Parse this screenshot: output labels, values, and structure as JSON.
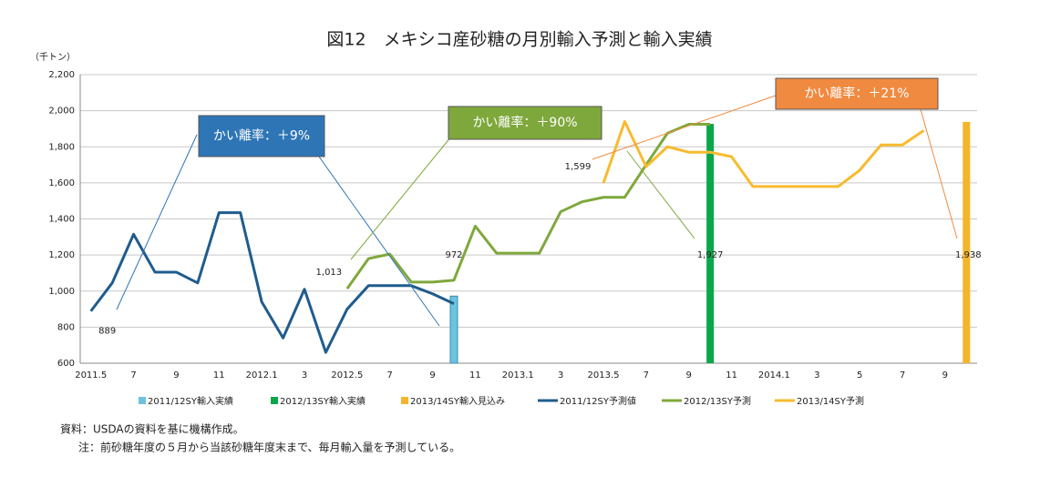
{
  "chart_data": {
    "type": "combo",
    "title": "図12　メキシコ産砂糖の月別輸入予測と輸入実績",
    "y_label": "（千トン）",
    "notes": [
      "資料：USDAの資料を基に機構作成。",
      "注：前砂糖年度の５月から当該砂糖年度末まで、毎月輸入量を予測している。"
    ],
    "categories": [
      "2011.5",
      null,
      "7",
      null,
      "9",
      null,
      "11",
      null,
      "2012.1",
      null,
      "3",
      null,
      "2012.5",
      null,
      "7",
      null,
      "9",
      null,
      "11",
      null,
      "2013.1",
      null,
      "3",
      null,
      "2013.5",
      null,
      "7",
      null,
      "9",
      null,
      "11",
      null,
      "2014.1",
      null,
      "3",
      null,
      "5",
      null,
      "7",
      null,
      "9",
      null
    ],
    "ylim": [
      600,
      2200
    ],
    "yticks": [
      {
        "value": 600,
        "label": "600"
      },
      {
        "value": 800,
        "label": "800"
      },
      {
        "value": 1000,
        "label": "1,000"
      },
      {
        "value": 1200,
        "label": "1,200"
      },
      {
        "value": 1400,
        "label": "1,400"
      },
      {
        "value": 1600,
        "label": "1,600"
      },
      {
        "value": 1800,
        "label": "1,800"
      },
      {
        "value": 2000,
        "label": "2,000"
      },
      {
        "value": 2200,
        "label": "2,200"
      }
    ],
    "series": [
      {
        "name": "2011/12SY輸入実績",
        "type": "bar",
        "color": "#6cc3e0",
        "values": [
          null,
          null,
          null,
          null,
          null,
          null,
          null,
          null,
          null,
          null,
          null,
          null,
          null,
          null,
          null,
          null,
          null,
          972,
          null,
          null,
          null,
          null,
          null,
          null,
          null,
          null,
          null,
          null,
          null,
          null,
          null,
          null,
          null,
          null,
          null,
          null,
          null,
          null,
          null,
          null,
          null,
          null
        ],
        "value_labels": [
          null,
          null,
          null,
          null,
          null,
          null,
          null,
          null,
          null,
          null,
          null,
          null,
          null,
          null,
          null,
          null,
          null,
          "972",
          null,
          null,
          null,
          null,
          null,
          null,
          null,
          null,
          null,
          null,
          null,
          null,
          null,
          null,
          null,
          null,
          null,
          null,
          null,
          null,
          null,
          null,
          null,
          null
        ]
      },
      {
        "name": "2012/13SY輸入実績",
        "type": "bar",
        "color": "#0aa64b",
        "values": [
          null,
          null,
          null,
          null,
          null,
          null,
          null,
          null,
          null,
          null,
          null,
          null,
          null,
          null,
          null,
          null,
          null,
          null,
          null,
          null,
          null,
          null,
          null,
          null,
          null,
          null,
          null,
          null,
          null,
          1927,
          null,
          null,
          null,
          null,
          null,
          null,
          null,
          null,
          null,
          null,
          null,
          null
        ],
        "value_labels": [
          null,
          null,
          null,
          null,
          null,
          null,
          null,
          null,
          null,
          null,
          null,
          null,
          null,
          null,
          null,
          null,
          null,
          null,
          null,
          null,
          null,
          null,
          null,
          null,
          null,
          null,
          null,
          null,
          null,
          "1,927",
          null,
          null,
          null,
          null,
          null,
          null,
          null,
          null,
          null,
          null,
          null,
          null
        ]
      },
      {
        "name": "2013/14SY輸入見込み",
        "type": "bar",
        "color": "#f5b52a",
        "values": [
          null,
          null,
          null,
          null,
          null,
          null,
          null,
          null,
          null,
          null,
          null,
          null,
          null,
          null,
          null,
          null,
          null,
          null,
          null,
          null,
          null,
          null,
          null,
          null,
          null,
          null,
          null,
          null,
          null,
          null,
          null,
          null,
          null,
          null,
          null,
          null,
          null,
          null,
          null,
          null,
          null,
          1938
        ],
        "value_labels": [
          null,
          null,
          null,
          null,
          null,
          null,
          null,
          null,
          null,
          null,
          null,
          null,
          null,
          null,
          null,
          null,
          null,
          null,
          null,
          null,
          null,
          null,
          null,
          null,
          null,
          null,
          null,
          null,
          null,
          null,
          null,
          null,
          null,
          null,
          null,
          null,
          null,
          null,
          null,
          null,
          null,
          "1,938"
        ]
      },
      {
        "name": "2011/12SY予測値",
        "type": "line",
        "color": "#1f5c8e",
        "values": [
          889,
          1045,
          1315,
          1105,
          1105,
          1045,
          1435,
          1435,
          940,
          740,
          1010,
          660,
          900,
          1030,
          1030,
          1030,
          985,
          930,
          null,
          null,
          null,
          null,
          null,
          null,
          null,
          null,
          null,
          null,
          null,
          null,
          null,
          null,
          null,
          null,
          null,
          null,
          null,
          null,
          null,
          null,
          null,
          null
        ],
        "value_labels": [
          "889",
          null,
          null,
          null,
          null,
          null,
          null,
          null,
          null,
          null,
          null,
          null,
          null,
          null,
          null,
          null,
          null,
          null,
          null,
          null,
          null,
          null,
          null,
          null,
          null,
          null,
          null,
          null,
          null,
          null,
          null,
          null,
          null,
          null,
          null,
          null,
          null,
          null,
          null,
          null,
          null,
          null
        ]
      },
      {
        "name": "2012/13SY予測",
        "type": "line",
        "color": "#7fa83c",
        "values": [
          null,
          null,
          null,
          null,
          null,
          null,
          null,
          null,
          null,
          null,
          null,
          null,
          1013,
          1180,
          1205,
          1050,
          1050,
          1060,
          1360,
          1210,
          1210,
          1210,
          1440,
          1495,
          1520,
          1520,
          1700,
          1875,
          1925,
          1925,
          null,
          null,
          null,
          null,
          null,
          null,
          null,
          null,
          null,
          null,
          null,
          null
        ],
        "value_labels": [
          null,
          null,
          null,
          null,
          null,
          null,
          null,
          null,
          null,
          null,
          null,
          null,
          "1,013",
          null,
          null,
          null,
          null,
          null,
          null,
          null,
          null,
          null,
          null,
          null,
          null,
          null,
          null,
          null,
          null,
          null,
          null,
          null,
          null,
          null,
          null,
          null,
          null,
          null,
          null,
          null,
          null,
          null
        ]
      },
      {
        "name": "2013/14SY予測",
        "type": "line",
        "color": "#f7bb2f",
        "values": [
          null,
          null,
          null,
          null,
          null,
          null,
          null,
          null,
          null,
          null,
          null,
          null,
          null,
          null,
          null,
          null,
          null,
          null,
          null,
          null,
          null,
          null,
          null,
          null,
          1599,
          1940,
          1690,
          1800,
          1770,
          1770,
          1745,
          1580,
          1580,
          1580,
          1580,
          1580,
          1670,
          1810,
          1810,
          1890,
          null,
          null
        ],
        "value_labels": [
          null,
          null,
          null,
          null,
          null,
          null,
          null,
          null,
          null,
          null,
          null,
          null,
          null,
          null,
          null,
          null,
          null,
          null,
          null,
          null,
          null,
          null,
          null,
          null,
          "1,599",
          null,
          null,
          null,
          null,
          null,
          null,
          null,
          null,
          null,
          null,
          null,
          null,
          null,
          null,
          null,
          null,
          null
        ]
      }
    ],
    "annotations": [
      {
        "text": "かい離率：＋9%",
        "color": "#2e75b6"
      },
      {
        "text": "かい離率：＋90%",
        "color": "#7fa83c"
      },
      {
        "text": "かい離率：＋21%",
        "color": "#f08a40"
      }
    ]
  }
}
